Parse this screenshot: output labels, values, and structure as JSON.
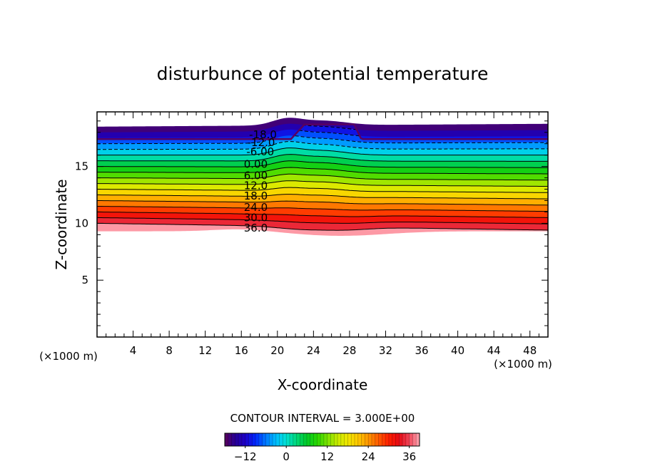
{
  "chart_data": {
    "type": "contour",
    "title": "disturbunce of potential temperature",
    "xlabel": "X-coordinate",
    "ylabel": "Z-coordinate",
    "x_unit": "(×1000 m)",
    "y_unit": "(×1000 m)",
    "xlim": [
      0,
      50
    ],
    "ylim": [
      0,
      19.8
    ],
    "xticks": [
      4,
      8,
      12,
      16,
      20,
      24,
      28,
      32,
      36,
      40,
      44,
      48
    ],
    "yticks": [
      5,
      10,
      15
    ],
    "contour_interval_text": "CONTOUR INTERVAL = 3.000E+00",
    "contour_labels": [
      {
        "text": "-18.0",
        "x": 18.4,
        "z": 17.8
      },
      {
        "text": "-12.0",
        "x": 18.2,
        "z": 17.1
      },
      {
        "text": "-6.00",
        "x": 18.1,
        "z": 16.3
      },
      {
        "text": "0.00",
        "x": 17.6,
        "z": 15.2
      },
      {
        "text": "6.00",
        "x": 17.6,
        "z": 14.2
      },
      {
        "text": "12.0",
        "x": 17.6,
        "z": 13.3
      },
      {
        "text": "18.0",
        "x": 17.6,
        "z": 12.4
      },
      {
        "text": "24.0",
        "x": 17.6,
        "z": 11.4
      },
      {
        "text": "30.0",
        "x": 17.6,
        "z": 10.5
      },
      {
        "text": "36.0",
        "x": 17.6,
        "z": 9.6
      }
    ],
    "colorbar": {
      "range": [
        -18,
        39
      ],
      "ticks": [
        -12,
        0,
        12,
        24,
        36
      ],
      "tick_labels": [
        "−12",
        "0",
        "12",
        "24",
        "36"
      ]
    }
  }
}
